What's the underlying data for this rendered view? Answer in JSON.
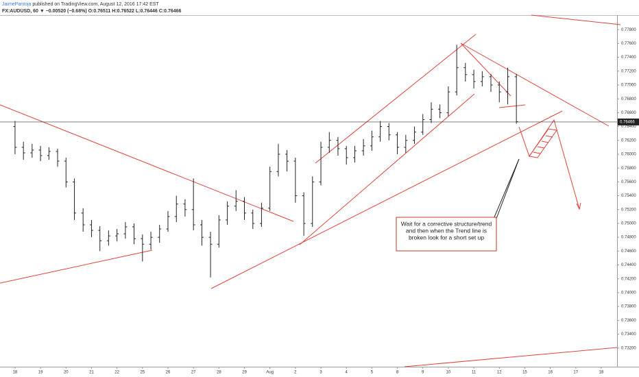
{
  "header": {
    "author": "JaimePantoja",
    "published": "published on TradingView.com, August 12, 2016 17:42 EST",
    "symbol": "FX:AUDUSD, 60 ▼ −0.00520 (−0.68%) O:0.76511 H:0.76522 L:0.76446 C:0.76466"
  },
  "chart_data": {
    "type": "ohlc",
    "color": "#222222",
    "x": [
      0,
      0.33,
      0.67,
      1,
      1.33,
      1.67,
      2,
      2.33,
      2.67,
      3,
      3.33,
      3.67,
      4,
      4.33,
      4.67,
      5,
      5.33,
      5.67,
      6,
      6.33,
      6.67,
      7,
      7.33,
      7.67,
      8,
      8.33,
      8.67,
      9,
      9.33,
      9.67,
      10,
      10.33,
      10.67,
      11,
      11.33,
      11.67,
      12,
      12.33,
      12.67,
      13,
      13.33,
      13.67,
      14,
      14.33,
      14.67,
      15,
      15.33,
      15.67,
      16,
      16.33,
      16.67,
      17,
      17.33,
      17.67,
      18,
      18.33,
      18.67,
      19,
      19.33,
      19.67
    ],
    "open": [
      0.764,
      0.761,
      0.7602,
      0.7606,
      0.7598,
      0.7604,
      0.759,
      0.756,
      0.7515,
      0.7498,
      0.749,
      0.7475,
      0.7482,
      0.7485,
      0.7495,
      0.7478,
      0.747,
      0.748,
      0.7492,
      0.751,
      0.7528,
      0.752,
      0.7498,
      0.748,
      0.747,
      0.7505,
      0.7525,
      0.7532,
      0.7515,
      0.75,
      0.7522,
      0.7575,
      0.76,
      0.759,
      0.754,
      0.75,
      0.756,
      0.761,
      0.762,
      0.7608,
      0.7595,
      0.7605,
      0.7612,
      0.7625,
      0.764,
      0.7628,
      0.761,
      0.762,
      0.7632,
      0.765,
      0.7665,
      0.766,
      0.769,
      0.7725,
      0.7715,
      0.7705,
      0.7712,
      0.77,
      0.769,
      0.7712
    ],
    "high": [
      0.7648,
      0.7618,
      0.7615,
      0.7612,
      0.761,
      0.7608,
      0.7595,
      0.7565,
      0.7522,
      0.7505,
      0.7496,
      0.749,
      0.7492,
      0.7502,
      0.75,
      0.7484,
      0.7488,
      0.7498,
      0.7518,
      0.754,
      0.7535,
      0.7565,
      0.7505,
      0.7488,
      0.7512,
      0.7532,
      0.7548,
      0.7538,
      0.752,
      0.753,
      0.7582,
      0.7615,
      0.7606,
      0.7595,
      0.7545,
      0.7568,
      0.7618,
      0.7632,
      0.7625,
      0.7612,
      0.7612,
      0.7622,
      0.7634,
      0.7648,
      0.7645,
      0.7632,
      0.7628,
      0.764,
      0.7658,
      0.7675,
      0.7672,
      0.7698,
      0.7758,
      0.7732,
      0.7722,
      0.772,
      0.7716,
      0.7705,
      0.7725,
      0.7716
    ],
    "low": [
      0.76,
      0.7592,
      0.7595,
      0.759,
      0.7592,
      0.7582,
      0.7552,
      0.7505,
      0.7488,
      0.748,
      0.746,
      0.7468,
      0.7474,
      0.7478,
      0.747,
      0.7445,
      0.7462,
      0.7472,
      0.7488,
      0.7502,
      0.751,
      0.749,
      0.7468,
      0.7422,
      0.7465,
      0.7498,
      0.7518,
      0.7505,
      0.7492,
      0.7495,
      0.7518,
      0.7568,
      0.7575,
      0.753,
      0.7482,
      0.7495,
      0.7555,
      0.7602,
      0.7598,
      0.7585,
      0.7588,
      0.7598,
      0.7605,
      0.7618,
      0.762,
      0.76,
      0.7602,
      0.7615,
      0.7628,
      0.7645,
      0.7652,
      0.7655,
      0.7685,
      0.7705,
      0.7695,
      0.7698,
      0.769,
      0.7675,
      0.7672,
      0.7644
    ],
    "close": [
      0.761,
      0.7602,
      0.7606,
      0.7598,
      0.7604,
      0.759,
      0.756,
      0.7515,
      0.7498,
      0.749,
      0.7475,
      0.7482,
      0.7485,
      0.7495,
      0.7478,
      0.747,
      0.748,
      0.7492,
      0.751,
      0.7528,
      0.752,
      0.7498,
      0.748,
      0.747,
      0.7505,
      0.7525,
      0.7532,
      0.7515,
      0.75,
      0.7522,
      0.7575,
      0.76,
      0.759,
      0.754,
      0.75,
      0.756,
      0.761,
      0.762,
      0.7608,
      0.7595,
      0.7605,
      0.7612,
      0.7625,
      0.764,
      0.7628,
      0.761,
      0.762,
      0.7632,
      0.765,
      0.7665,
      0.766,
      0.769,
      0.7725,
      0.7715,
      0.7705,
      0.7712,
      0.77,
      0.769,
      0.7712,
      0.7647
    ],
    "xlim": [
      -0.59,
      23.62
    ],
    "xticks": [
      {
        "value": 0,
        "label": "18"
      },
      {
        "value": 1,
        "label": "19"
      },
      {
        "value": 2,
        "label": "20"
      },
      {
        "value": 3,
        "label": "21"
      },
      {
        "value": 4,
        "label": "22"
      },
      {
        "value": 5,
        "label": "25"
      },
      {
        "value": 6,
        "label": "26"
      },
      {
        "value": 7,
        "label": "27"
      },
      {
        "value": 8,
        "label": "28"
      },
      {
        "value": 9,
        "label": "29"
      },
      {
        "value": 10,
        "label": "Aug"
      },
      {
        "value": 11,
        "label": "2"
      },
      {
        "value": 12,
        "label": "3"
      },
      {
        "value": 13,
        "label": "4"
      },
      {
        "value": 14,
        "label": "5"
      },
      {
        "value": 15,
        "label": "8"
      },
      {
        "value": 16,
        "label": "9"
      },
      {
        "value": 17,
        "label": "10"
      },
      {
        "value": 18,
        "label": "11"
      },
      {
        "value": 19,
        "label": "12"
      },
      {
        "value": 20,
        "label": "15"
      },
      {
        "value": 21,
        "label": "16"
      },
      {
        "value": 22,
        "label": "17"
      },
      {
        "value": 23,
        "label": "18"
      }
    ],
    "ylim": [
      0.7293,
      0.7801
    ],
    "yticks": [
      {
        "value": 0.732,
        "label": "0.73200"
      },
      {
        "value": 0.734,
        "label": "0.73400"
      },
      {
        "value": 0.736,
        "label": "0.73600"
      },
      {
        "value": 0.738,
        "label": "0.73800"
      },
      {
        "value": 0.74,
        "label": "0.74000"
      },
      {
        "value": 0.742,
        "label": "0.74200"
      },
      {
        "value": 0.744,
        "label": "0.74400"
      },
      {
        "value": 0.746,
        "label": "0.74600"
      },
      {
        "value": 0.748,
        "label": "0.74800"
      },
      {
        "value": 0.75,
        "label": "0.75000"
      },
      {
        "value": 0.752,
        "label": "0.75200"
      },
      {
        "value": 0.754,
        "label": "0.75400"
      },
      {
        "value": 0.756,
        "label": "0.75600"
      },
      {
        "value": 0.758,
        "label": "0.75800"
      },
      {
        "value": 0.76,
        "label": "0.76000"
      },
      {
        "value": 0.762,
        "label": "0.76200"
      },
      {
        "value": 0.764,
        "label": "0.76400"
      },
      {
        "value": 0.766,
        "label": "0.76600"
      },
      {
        "value": 0.768,
        "label": "0.76800"
      },
      {
        "value": 0.77,
        "label": "0.77000"
      },
      {
        "value": 0.772,
        "label": "0.77200"
      },
      {
        "value": 0.774,
        "label": "0.77400"
      },
      {
        "value": 0.776,
        "label": "0.77600"
      },
      {
        "value": 0.778,
        "label": "0.77800"
      }
    ],
    "last_price": {
      "value": 0.76466,
      "label": "0.76466"
    },
    "annotation": [
      "Wait for a corrective structure/trend",
      "and then when the Trend line is",
      "broken look for a short set up"
    ]
  }
}
